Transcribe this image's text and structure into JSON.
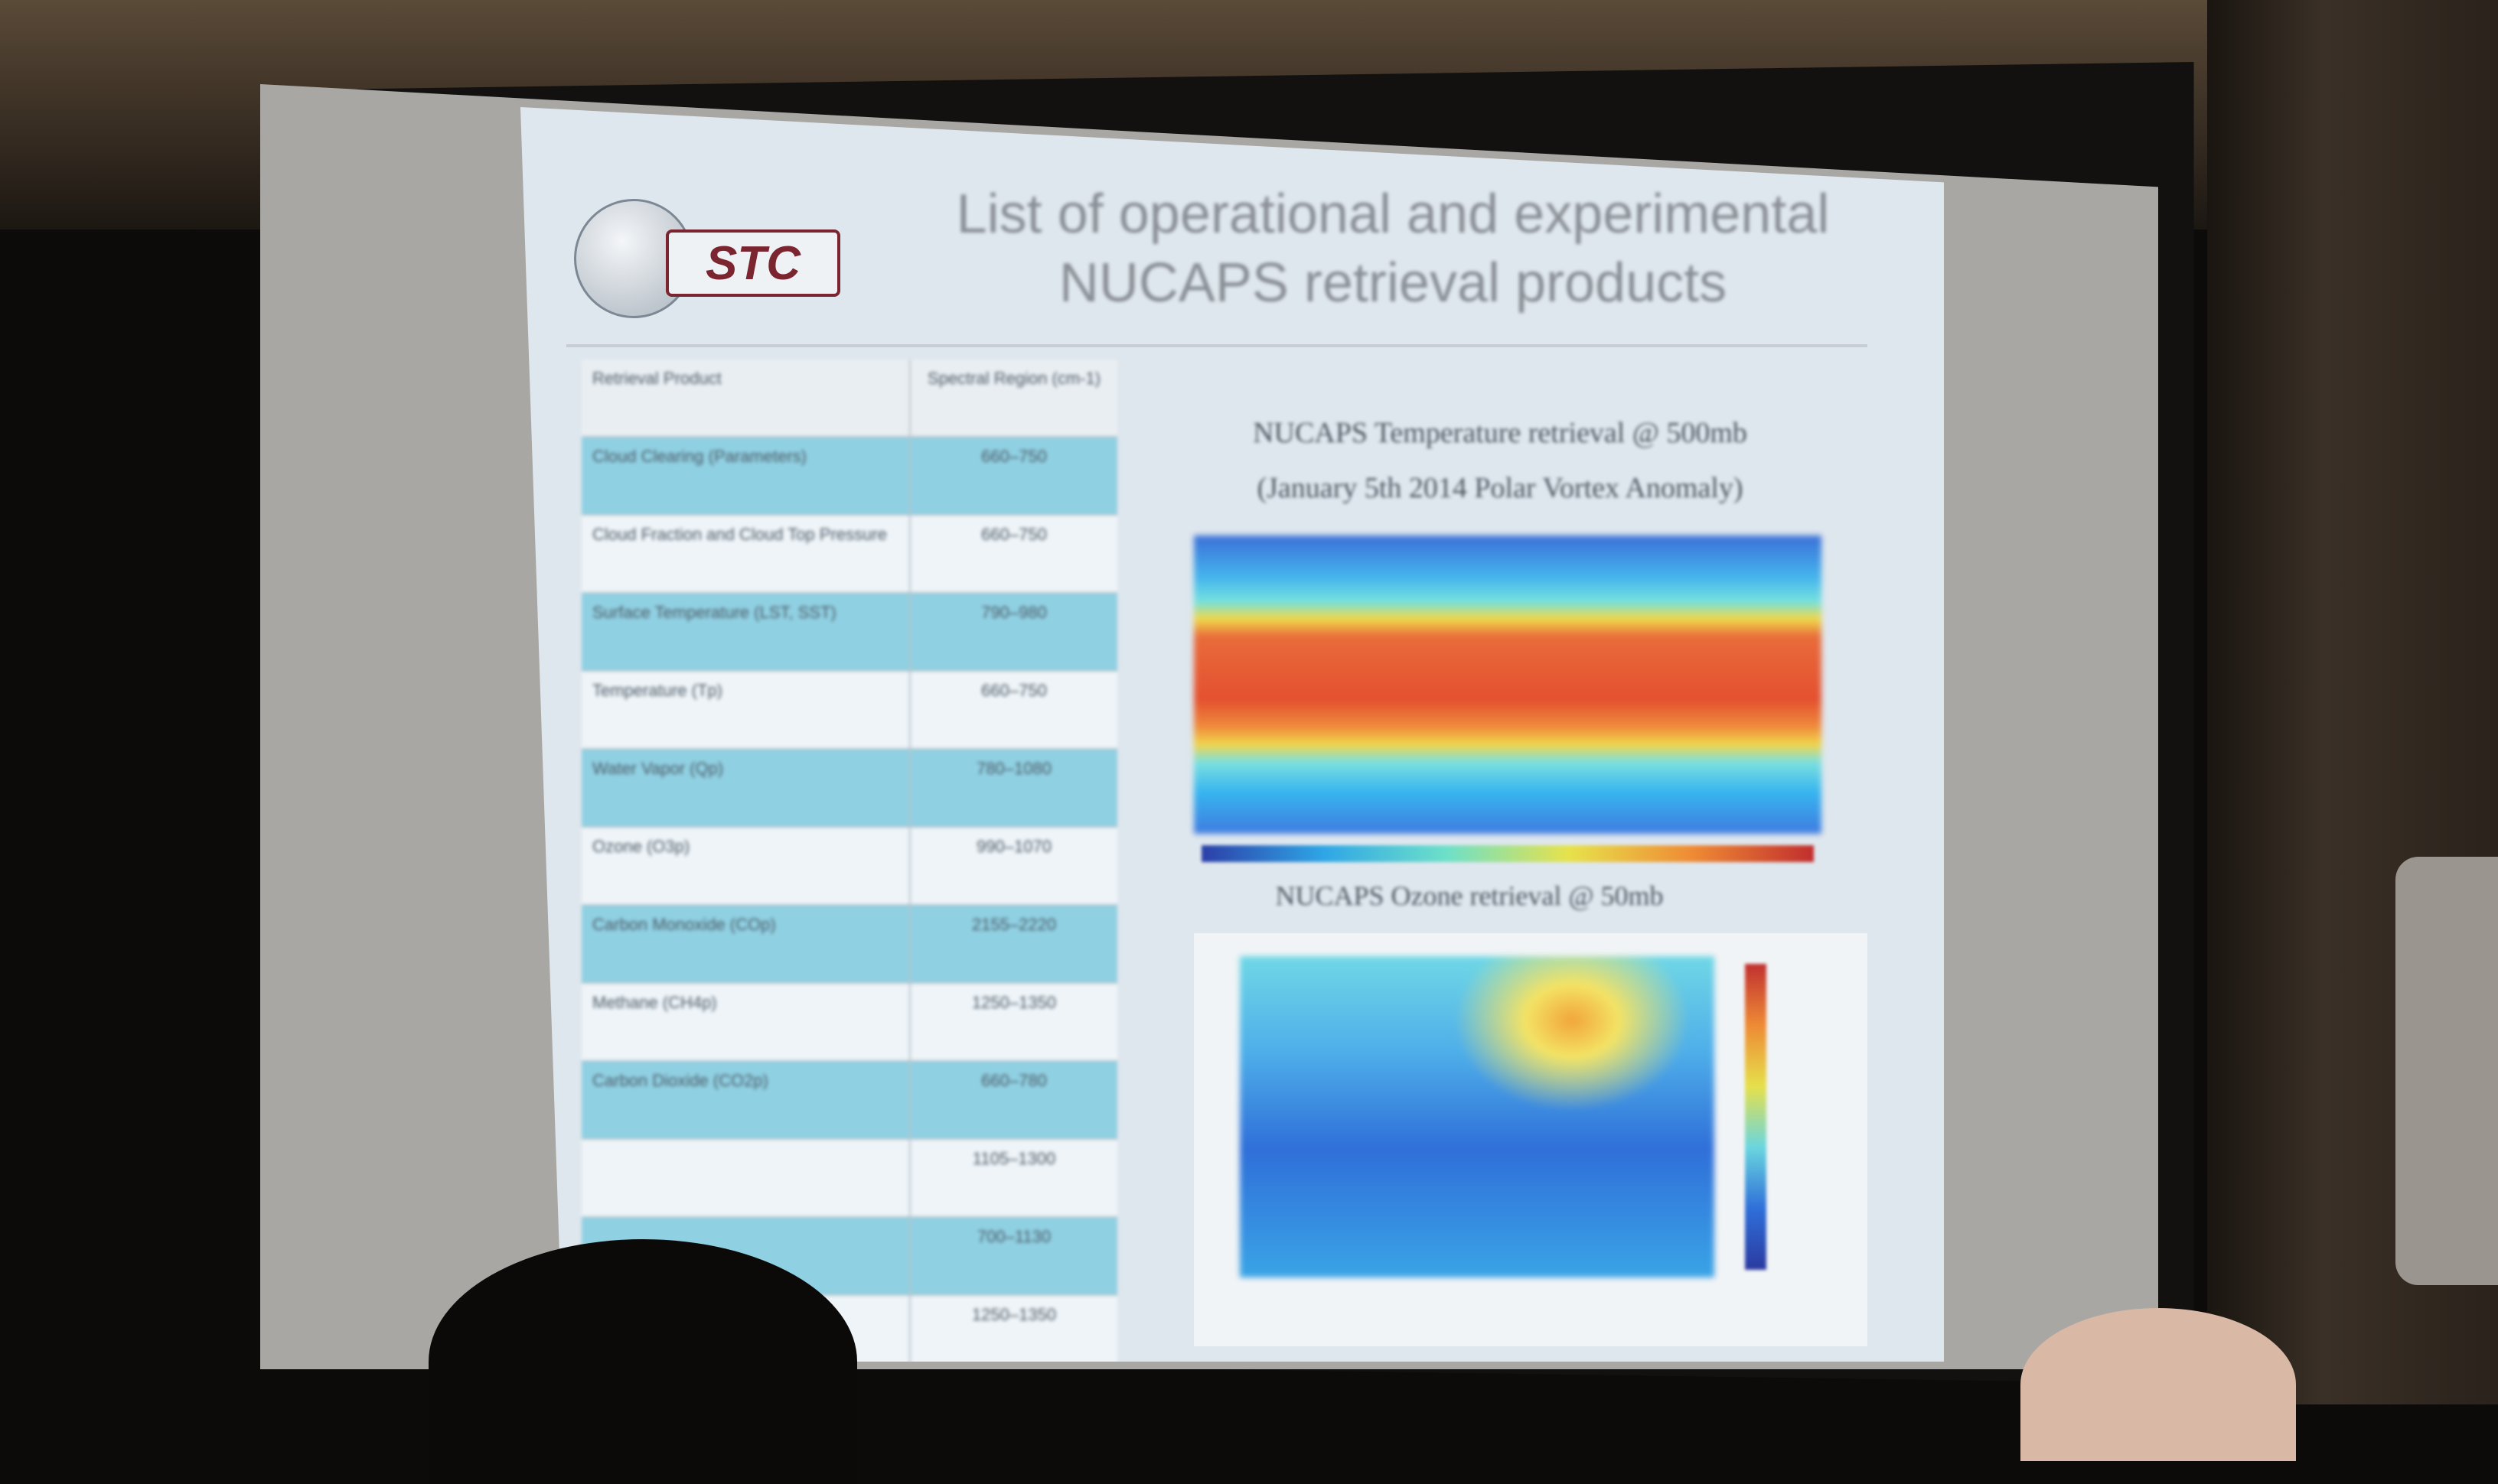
{
  "slide": {
    "title_line1": "List of operational and experimental",
    "title_line2": "NUCAPS retrieval products",
    "logo_text": "STC",
    "table": {
      "rows": [
        {
          "c1": "Retrieval Product",
          "c2": "Spectral Region (cm-1)"
        },
        {
          "c1": "Cloud Clearing (Parameters)",
          "c2": "660–750"
        },
        {
          "c1": "Cloud Fraction and Cloud Top Pressure",
          "c2": "660–750"
        },
        {
          "c1": "Surface Temperature (LST, SST)",
          "c2": "790–980"
        },
        {
          "c1": "Temperature (Tp)",
          "c2": "660–750"
        },
        {
          "c1": "Water Vapor (Qp)",
          "c2": "780–1080"
        },
        {
          "c1": "Ozone (O3p)",
          "c2": "990–1070"
        },
        {
          "c1": "Carbon Monoxide (COp)",
          "c2": "2155–2220"
        },
        {
          "c1": "Methane (CH4p)",
          "c2": "1250–1350"
        },
        {
          "c1": "Carbon Dioxide (CO2p)",
          "c2": "660–780"
        },
        {
          "c1": "",
          "c2": "1105–1300"
        },
        {
          "c1": "",
          "c2": "700–1130"
        },
        {
          "c1": "",
          "c2": "1250–1350"
        }
      ]
    },
    "chart1": {
      "title_line1": "NUCAPS Temperature retrieval @ 500mb",
      "title_line2": "(January 5th 2014 Polar Vortex Anomaly)"
    },
    "chart2": {
      "title": "NUCAPS Ozone retrieval @ 50mb"
    }
  }
}
